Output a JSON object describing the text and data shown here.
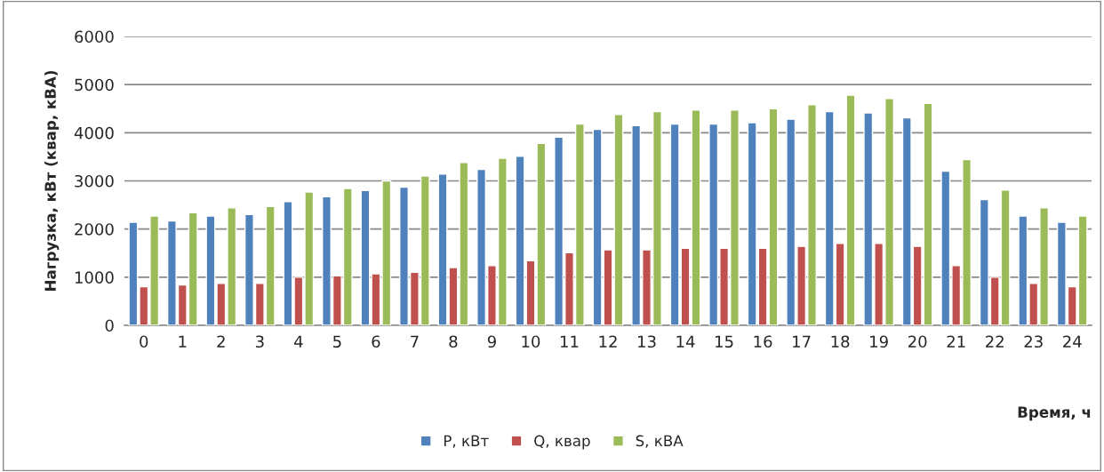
{
  "chart_data": {
    "type": "bar",
    "xlabel": "Время, ч",
    "ylabel": "Нагрузка, кВт (квар, кВА)",
    "categories": [
      "0",
      "1",
      "2",
      "3",
      "4",
      "5",
      "6",
      "7",
      "8",
      "9",
      "10",
      "11",
      "12",
      "13",
      "14",
      "15",
      "16",
      "17",
      "18",
      "19",
      "20",
      "21",
      "22",
      "23",
      "24"
    ],
    "series": [
      {
        "name": "P, кВт",
        "color": "#4f81bd",
        "values": [
          2140,
          2170,
          2270,
          2300,
          2570,
          2670,
          2800,
          2870,
          3140,
          3240,
          3510,
          3910,
          4070,
          4150,
          4180,
          4180,
          4210,
          4280,
          4440,
          4410,
          4310,
          3200,
          2610,
          2270,
          2140
        ]
      },
      {
        "name": "Q, квар",
        "color": "#c0504d",
        "values": [
          800,
          840,
          870,
          870,
          1000,
          1030,
          1070,
          1100,
          1200,
          1240,
          1340,
          1510,
          1570,
          1570,
          1600,
          1600,
          1600,
          1640,
          1700,
          1700,
          1640,
          1240,
          1000,
          870,
          800
        ]
      },
      {
        "name": "S, кВА",
        "color": "#9bbb59",
        "values": [
          2270,
          2340,
          2440,
          2470,
          2770,
          2840,
          3000,
          3100,
          3380,
          3470,
          3780,
          4180,
          4380,
          4440,
          4470,
          4470,
          4500,
          4580,
          4780,
          4710,
          4610,
          3440,
          2810,
          2440,
          2270
        ]
      }
    ],
    "ylim": [
      0,
      6000
    ],
    "yticks": [
      0,
      1000,
      2000,
      3000,
      4000,
      5000,
      6000
    ],
    "grid": "y",
    "legend": "bottom"
  }
}
